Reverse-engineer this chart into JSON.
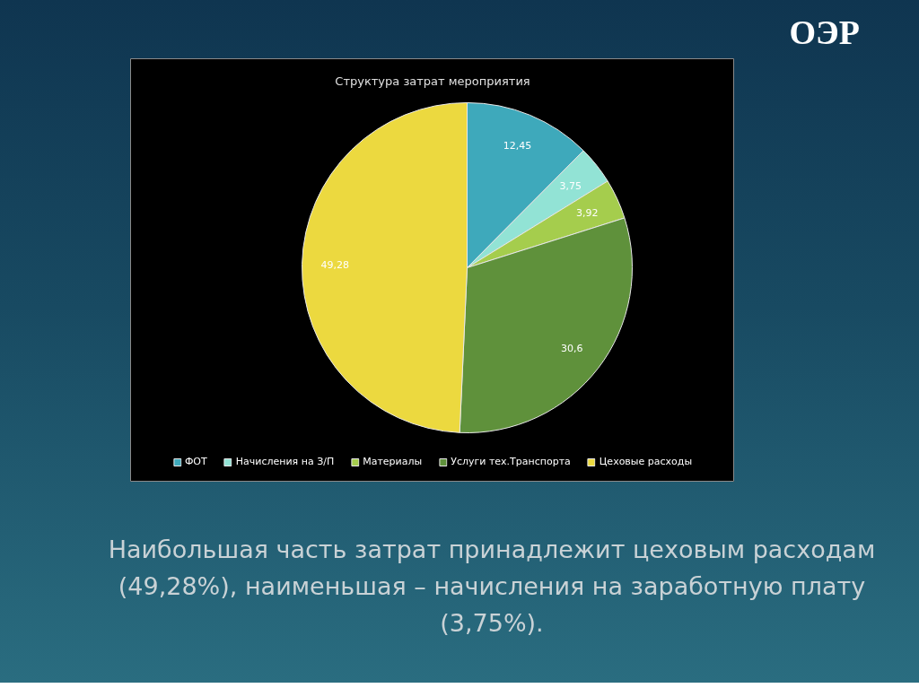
{
  "chart_data": {
    "type": "pie",
    "title": "Структура затрат мероприятия",
    "categories": [
      "ФОТ",
      "Начисления на З/П",
      "Материалы",
      "Услуги тех.Транспорта",
      "Цеховые расходы"
    ],
    "values": [
      12.45,
      3.75,
      3.92,
      30.6,
      49.28
    ],
    "colors": [
      "#3ea9bb",
      "#92e3d5",
      "#a5cd4d",
      "#5f913b",
      "#ecd93f"
    ],
    "value_labels": [
      "12,45",
      "3,75",
      "3,92",
      "30,6",
      "49,28"
    ],
    "legend": "bottom",
    "annotations": [
      "ОЭР",
      "Наибольшая часть затрат принадлежит цеховым расходам (49,28%), наименьшая – начисления на заработную плату (3,75%)."
    ]
  }
}
